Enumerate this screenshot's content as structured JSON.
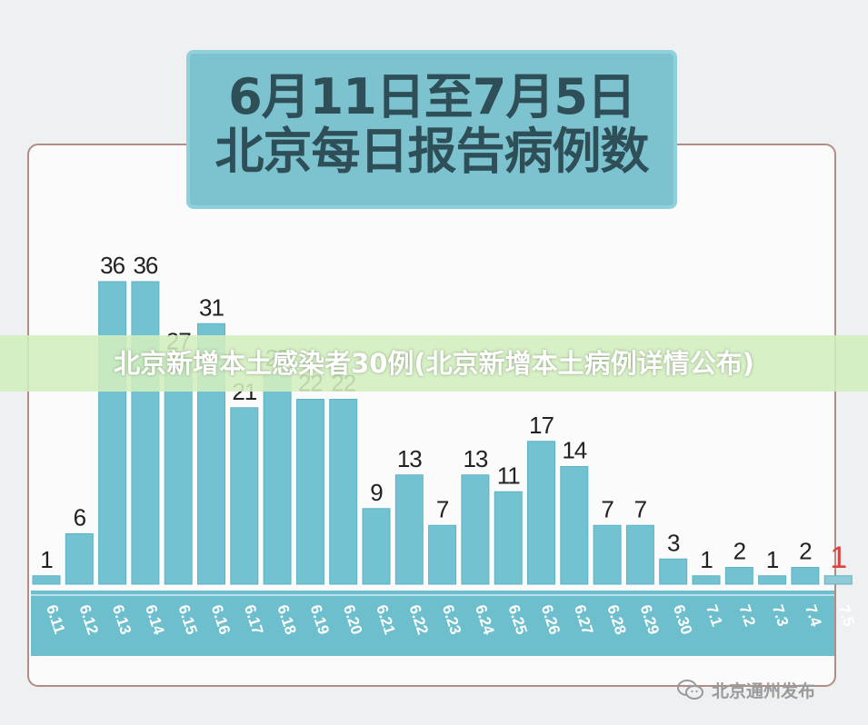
{
  "title": {
    "line1": "6月11日至7月5日",
    "line2": "北京每日报告病例数"
  },
  "banner": {
    "text": "北京新增本土感染者30例(北京新增本土病例详情公布)"
  },
  "watermark": {
    "text": "北京通州发布",
    "icon": "wechat-icon"
  },
  "colors": {
    "bar": "#72c2d1",
    "bar_stroke": "#5fb3c4",
    "axis_band": "#6dbfcd",
    "value_text": "#222222",
    "highlight_text": "#d9443f",
    "highlight_bar": "#8fcbd6"
  },
  "chart_data": {
    "type": "bar",
    "categories": [
      "6.11",
      "6.12",
      "6.13",
      "6.14",
      "6.15",
      "6.16",
      "6.17",
      "6.18",
      "6.19",
      "6.20",
      "6.21",
      "6.22",
      "6.23",
      "6.24",
      "6.25",
      "6.26",
      "6.27",
      "6.28",
      "6.29",
      "6.30",
      "7.1",
      "7.2",
      "7.3",
      "7.4",
      "7.5"
    ],
    "values": [
      1,
      6,
      36,
      36,
      27,
      31,
      21,
      25,
      22,
      22,
      9,
      13,
      7,
      13,
      11,
      17,
      14,
      7,
      7,
      3,
      1,
      2,
      1,
      2,
      1
    ],
    "value_labels": [
      "1",
      "6",
      "36",
      "36",
      "27",
      "31",
      "21",
      "25",
      "22",
      "22",
      "9",
      "13",
      "7",
      "13",
      "11",
      "17",
      "14",
      "7",
      "7",
      "3",
      "1",
      "2",
      "1",
      "2",
      "1"
    ],
    "highlight_index": 24,
    "ylim": [
      0,
      36
    ]
  }
}
